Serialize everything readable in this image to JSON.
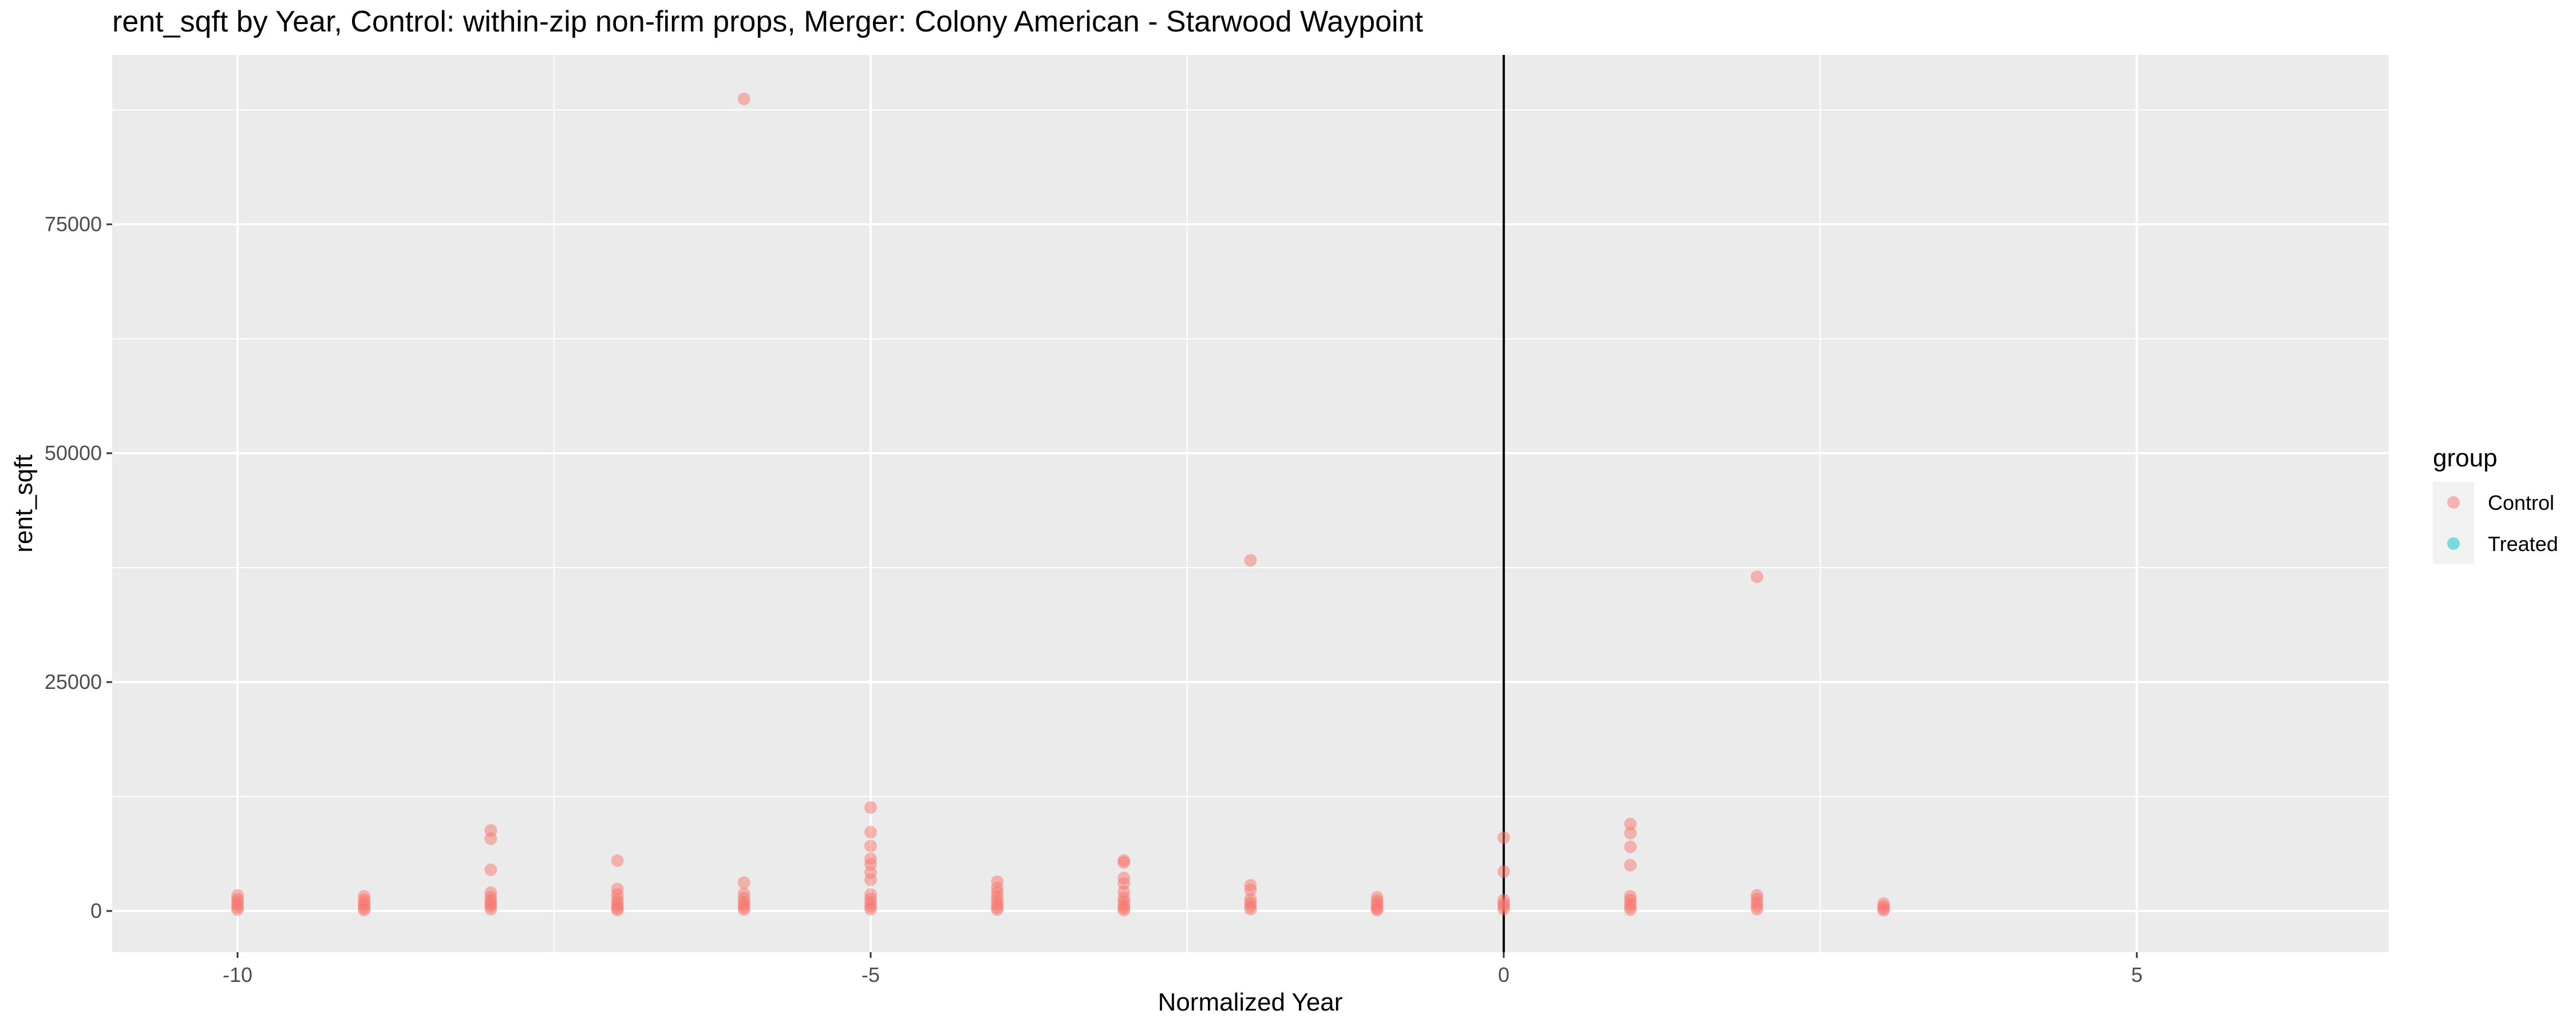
{
  "chart_data": {
    "type": "scatter",
    "title": "rent_sqft by Year, Control: within-zip non-firm props, Merger: Colony American - Starwood Waypoint",
    "xlabel": "Normalized Year",
    "ylabel": "rent_sqft",
    "xlim": [
      -10.99,
      6.99
    ],
    "ylim": [
      -4500,
      93500
    ],
    "x_ticks": [
      -10,
      -5,
      0,
      5
    ],
    "x_tick_labels": [
      "-10",
      "-5",
      "0",
      "5"
    ],
    "y_ticks": [
      0,
      25000,
      50000,
      75000
    ],
    "y_tick_labels": [
      "0",
      "25000",
      "50000",
      "75000"
    ],
    "grid": true,
    "vline_x": 0,
    "legend": {
      "title": "group",
      "position": "right",
      "entries": [
        {
          "label": "Control",
          "color": "#F8766D"
        },
        {
          "label": "Treated",
          "color": "#00BFC4"
        }
      ]
    },
    "series": [
      {
        "name": "Control",
        "color": "#F8766D",
        "points": [
          {
            "x": -10,
            "y": 1700
          },
          {
            "x": -10,
            "y": 1300
          },
          {
            "x": -10,
            "y": 1000
          },
          {
            "x": -10,
            "y": 700
          },
          {
            "x": -10,
            "y": 400
          },
          {
            "x": -10,
            "y": 150
          },
          {
            "x": -9,
            "y": 1600
          },
          {
            "x": -9,
            "y": 1200
          },
          {
            "x": -9,
            "y": 900
          },
          {
            "x": -9,
            "y": 600
          },
          {
            "x": -9,
            "y": 300
          },
          {
            "x": -9,
            "y": 100
          },
          {
            "x": -8,
            "y": 8800
          },
          {
            "x": -8,
            "y": 7900
          },
          {
            "x": -8,
            "y": 4500
          },
          {
            "x": -8,
            "y": 2000
          },
          {
            "x": -8,
            "y": 1500
          },
          {
            "x": -8,
            "y": 1100
          },
          {
            "x": -8,
            "y": 800
          },
          {
            "x": -8,
            "y": 500
          },
          {
            "x": -8,
            "y": 200
          },
          {
            "x": -7,
            "y": 5500
          },
          {
            "x": -7,
            "y": 2400
          },
          {
            "x": -7,
            "y": 1800
          },
          {
            "x": -7,
            "y": 1300
          },
          {
            "x": -7,
            "y": 900
          },
          {
            "x": -7,
            "y": 600
          },
          {
            "x": -7,
            "y": 300
          },
          {
            "x": -7,
            "y": 100
          },
          {
            "x": -6,
            "y": 88700
          },
          {
            "x": -6,
            "y": 3100
          },
          {
            "x": -6,
            "y": 1900
          },
          {
            "x": -6,
            "y": 1400
          },
          {
            "x": -6,
            "y": 1000
          },
          {
            "x": -6,
            "y": 700
          },
          {
            "x": -6,
            "y": 400
          },
          {
            "x": -6,
            "y": 150
          },
          {
            "x": -5,
            "y": 11300
          },
          {
            "x": -5,
            "y": 8600
          },
          {
            "x": -5,
            "y": 7100
          },
          {
            "x": -5,
            "y": 5700
          },
          {
            "x": -5,
            "y": 5100
          },
          {
            "x": -5,
            "y": 4200
          },
          {
            "x": -5,
            "y": 3400
          },
          {
            "x": -5,
            "y": 1800
          },
          {
            "x": -5,
            "y": 1300
          },
          {
            "x": -5,
            "y": 900
          },
          {
            "x": -5,
            "y": 500
          },
          {
            "x": -5,
            "y": 200
          },
          {
            "x": -4,
            "y": 3200
          },
          {
            "x": -4,
            "y": 2500
          },
          {
            "x": -4,
            "y": 2000
          },
          {
            "x": -4,
            "y": 1500
          },
          {
            "x": -4,
            "y": 1100
          },
          {
            "x": -4,
            "y": 700
          },
          {
            "x": -4,
            "y": 400
          },
          {
            "x": -4,
            "y": 150
          },
          {
            "x": -3,
            "y": 5500
          },
          {
            "x": -3,
            "y": 5300
          },
          {
            "x": -3,
            "y": 3600
          },
          {
            "x": -3,
            "y": 3000
          },
          {
            "x": -3,
            "y": 2100
          },
          {
            "x": -3,
            "y": 1400
          },
          {
            "x": -3,
            "y": 1000
          },
          {
            "x": -3,
            "y": 600
          },
          {
            "x": -3,
            "y": 300
          },
          {
            "x": -3,
            "y": 100
          },
          {
            "x": -2,
            "y": 38300
          },
          {
            "x": -2,
            "y": 2800
          },
          {
            "x": -2,
            "y": 2300
          },
          {
            "x": -2,
            "y": 1300
          },
          {
            "x": -2,
            "y": 900
          },
          {
            "x": -2,
            "y": 500
          },
          {
            "x": -2,
            "y": 200
          },
          {
            "x": -1,
            "y": 1500
          },
          {
            "x": -1,
            "y": 1100
          },
          {
            "x": -1,
            "y": 800
          },
          {
            "x": -1,
            "y": 500
          },
          {
            "x": -1,
            "y": 250
          },
          {
            "x": -1,
            "y": 100
          },
          {
            "x": 0,
            "y": 8000
          },
          {
            "x": 0,
            "y": 4300
          },
          {
            "x": 0,
            "y": 1200
          },
          {
            "x": 0,
            "y": 800
          },
          {
            "x": 0,
            "y": 500
          },
          {
            "x": 0,
            "y": 200
          },
          {
            "x": 1,
            "y": 9500
          },
          {
            "x": 1,
            "y": 8500
          },
          {
            "x": 1,
            "y": 7000
          },
          {
            "x": 1,
            "y": 5000
          },
          {
            "x": 1,
            "y": 1600
          },
          {
            "x": 1,
            "y": 1200
          },
          {
            "x": 1,
            "y": 800
          },
          {
            "x": 1,
            "y": 450
          },
          {
            "x": 1,
            "y": 150
          },
          {
            "x": 2,
            "y": 36500
          },
          {
            "x": 2,
            "y": 1700
          },
          {
            "x": 2,
            "y": 1300
          },
          {
            "x": 2,
            "y": 900
          },
          {
            "x": 2,
            "y": 500
          },
          {
            "x": 2,
            "y": 200
          },
          {
            "x": 3,
            "y": 800
          },
          {
            "x": 3,
            "y": 500
          },
          {
            "x": 3,
            "y": 250
          },
          {
            "x": 3,
            "y": 80
          }
        ]
      }
    ]
  }
}
